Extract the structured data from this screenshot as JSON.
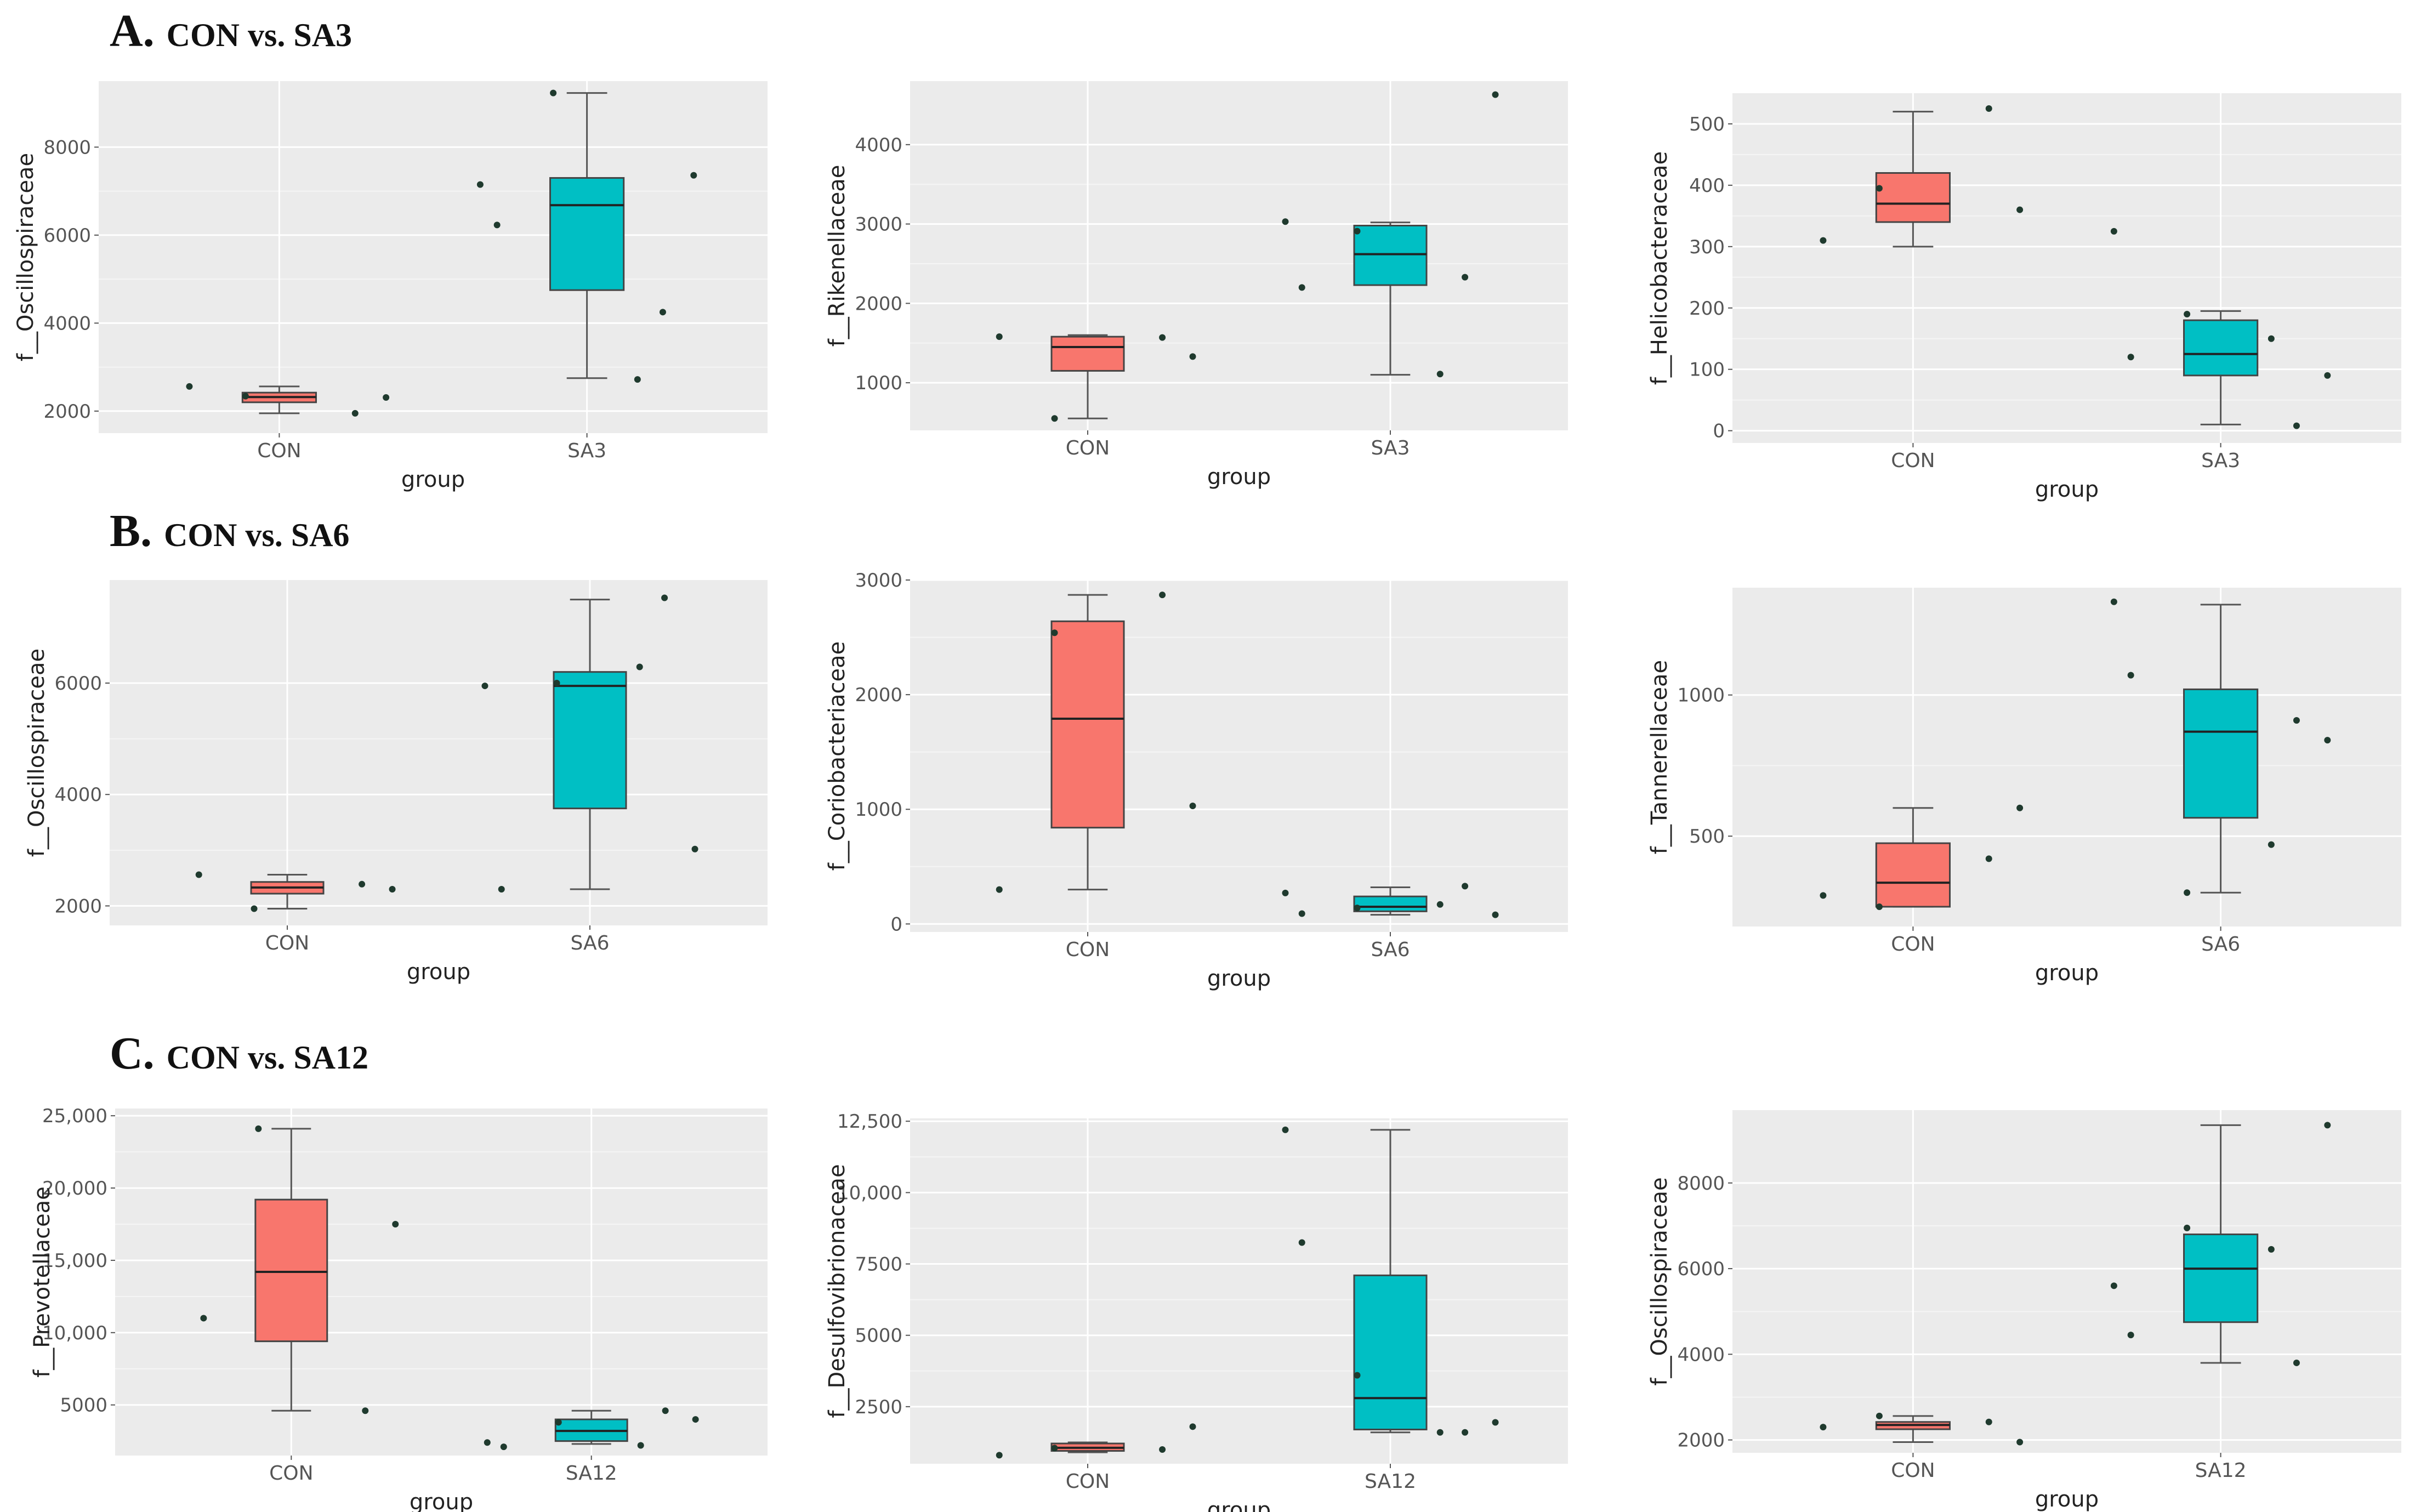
{
  "sections": [
    {
      "letter": "A.",
      "title": "CON vs. SA3"
    },
    {
      "letter": "B.",
      "title": "CON vs. SA6"
    },
    {
      "letter": "C.",
      "title": "CON vs. SA12"
    }
  ],
  "colors": {
    "CON": "#F8766D",
    "SA": "#00BFC4",
    "panel_bg": "#EBEBEB",
    "grid": "#FFFFFF",
    "point": "#1F3A2E"
  },
  "chart_data": [
    {
      "type": "box",
      "title": "",
      "ylabel": "f__Oscillospiraceae",
      "xlabel": "group",
      "categories": [
        "CON",
        "SA3"
      ],
      "ylim": [
        1500,
        9500
      ],
      "yticks": [
        2000,
        4000,
        6000,
        8000
      ],
      "tick_labels": [
        "2000",
        "4000",
        "6000",
        "8000"
      ],
      "boxes": [
        {
          "group": "CON",
          "min": 1950,
          "q1": 2200,
          "median": 2320,
          "q3": 2420,
          "max": 2560
        },
        {
          "group": "SA3",
          "min": 2750,
          "q1": 4750,
          "median": 6680,
          "q3": 7300,
          "max": 9230
        }
      ],
      "points": [
        {
          "group": "CON",
          "y": [
            2560,
            1950,
            2340,
            2310
          ]
        },
        {
          "group": "SA3",
          "y": [
            6230,
            4250,
            9230,
            7360,
            7150,
            2720
          ]
        }
      ]
    },
    {
      "type": "box",
      "title": "",
      "ylabel": "f__Rikenellaceae",
      "xlabel": "group",
      "categories": [
        "CON",
        "SA3"
      ],
      "ylim": [
        400,
        4800
      ],
      "yticks": [
        1000,
        2000,
        3000,
        4000
      ],
      "tick_labels": [
        "1000",
        "2000",
        "3000",
        "4000"
      ],
      "boxes": [
        {
          "group": "CON",
          "min": 550,
          "q1": 1150,
          "median": 1450,
          "q3": 1580,
          "max": 1600
        },
        {
          "group": "SA3",
          "min": 1100,
          "q1": 2230,
          "median": 2620,
          "q3": 2980,
          "max": 3020
        }
      ],
      "points": [
        {
          "group": "CON",
          "y": [
            1580,
            1570,
            550,
            1330
          ]
        },
        {
          "group": "SA3",
          "y": [
            2200,
            2330,
            2910,
            4630,
            3030,
            1110
          ]
        }
      ]
    },
    {
      "type": "box",
      "title": "",
      "ylabel": "f__Helicobacteraceae",
      "xlabel": "group",
      "categories": [
        "CON",
        "SA3"
      ],
      "ylim": [
        -20,
        550
      ],
      "yticks": [
        0,
        100,
        200,
        300,
        400,
        500
      ],
      "tick_labels": [
        "0",
        "100",
        "200",
        "300",
        "400",
        "500"
      ],
      "boxes": [
        {
          "group": "CON",
          "min": 300,
          "q1": 340,
          "median": 370,
          "q3": 420,
          "max": 520
        },
        {
          "group": "SA3",
          "min": 10,
          "q1": 90,
          "median": 125,
          "q3": 180,
          "max": 195
        }
      ],
      "points": [
        {
          "group": "CON",
          "y": [
            310,
            525,
            395,
            360
          ]
        },
        {
          "group": "SA3",
          "y": [
            120,
            8,
            190,
            90,
            325,
            150
          ]
        }
      ]
    },
    {
      "type": "box",
      "title": "",
      "ylabel": "f__Oscillospiraceae",
      "xlabel": "group",
      "categories": [
        "CON",
        "SA6"
      ],
      "ylim": [
        1650,
        7850
      ],
      "yticks": [
        2000,
        4000,
        6000
      ],
      "tick_labels": [
        "2000",
        "4000",
        "6000"
      ],
      "boxes": [
        {
          "group": "CON",
          "min": 1950,
          "q1": 2220,
          "median": 2330,
          "q3": 2430,
          "max": 2560
        },
        {
          "group": "SA6",
          "min": 2300,
          "q1": 3750,
          "median": 5950,
          "q3": 6200,
          "max": 7500
        }
      ],
      "points": [
        {
          "group": "CON",
          "y": [
            2560,
            2390,
            1950,
            2300
          ]
        },
        {
          "group": "SA6",
          "y": [
            2300,
            7530,
            6000,
            3020,
            5950,
            6290
          ]
        }
      ]
    },
    {
      "type": "box",
      "title": "",
      "ylabel": "f__Coriobacteriaceae",
      "xlabel": "group",
      "categories": [
        "CON",
        "SA6"
      ],
      "ylim": [
        -70,
        3000
      ],
      "yticks": [
        0,
        1000,
        2000,
        3000
      ],
      "tick_labels": [
        "0",
        "1000",
        "2000",
        "3000"
      ],
      "boxes": [
        {
          "group": "CON",
          "min": 300,
          "q1": 840,
          "median": 1790,
          "q3": 2640,
          "max": 2870
        },
        {
          "group": "SA6",
          "min": 80,
          "q1": 110,
          "median": 150,
          "q3": 240,
          "max": 320
        }
      ],
      "points": [
        {
          "group": "CON",
          "y": [
            300,
            2870,
            2540,
            1030
          ]
        },
        {
          "group": "SA6",
          "y": [
            90,
            330,
            140,
            80,
            270,
            170
          ]
        }
      ]
    },
    {
      "type": "box",
      "title": "",
      "ylabel": "f__Tannerellaceae",
      "xlabel": "group",
      "categories": [
        "CON",
        "SA6"
      ],
      "ylim": [
        180,
        1380
      ],
      "yticks": [
        500,
        1000
      ],
      "tick_labels": [
        "500",
        "1000"
      ],
      "boxes": [
        {
          "group": "CON",
          "min": 250,
          "q1": 250,
          "median": 335,
          "q3": 475,
          "max": 600
        },
        {
          "group": "SA6",
          "min": 300,
          "q1": 565,
          "median": 870,
          "q3": 1020,
          "max": 1320
        }
      ],
      "points": [
        {
          "group": "CON",
          "y": [
            290,
            420,
            250,
            600
          ]
        },
        {
          "group": "SA6",
          "y": [
            1070,
            910,
            300,
            840,
            1330,
            470
          ]
        }
      ]
    },
    {
      "type": "box",
      "title": "",
      "ylabel": "f__Prevotellaceae",
      "xlabel": "group",
      "categories": [
        "CON",
        "SA12"
      ],
      "ylim": [
        1500,
        25500
      ],
      "yticks": [
        5000,
        10000,
        15000,
        20000,
        25000
      ],
      "tick_labels": [
        "5000",
        "10,000",
        "15,000",
        "20,000",
        "25,000"
      ],
      "boxes": [
        {
          "group": "CON",
          "min": 4600,
          "q1": 9400,
          "median": 14200,
          "q3": 19200,
          "max": 24100
        },
        {
          "group": "SA12",
          "min": 2300,
          "q1": 2500,
          "median": 3200,
          "q3": 4000,
          "max": 4600
        }
      ],
      "points": [
        {
          "group": "CON",
          "y": [
            11000,
            4600,
            24100,
            17500
          ]
        },
        {
          "group": "SA12",
          "y": [
            2100,
            4600,
            3800,
            4000,
            2400,
            2200
          ]
        }
      ]
    },
    {
      "type": "box",
      "title": "",
      "ylabel": "f__Desulfovibrionaceae",
      "xlabel": "group",
      "categories": [
        "CON",
        "SA12"
      ],
      "ylim": [
        500,
        12600
      ],
      "yticks": [
        2500,
        5000,
        7500,
        10000,
        12500
      ],
      "tick_labels": [
        "2500",
        "5000",
        "7500",
        "10,000",
        "12,500"
      ],
      "boxes": [
        {
          "group": "CON",
          "min": 900,
          "q1": 950,
          "median": 1060,
          "q3": 1210,
          "max": 1250
        },
        {
          "group": "SA12",
          "min": 1600,
          "q1": 1700,
          "median": 2800,
          "q3": 7100,
          "max": 12200
        }
      ],
      "points": [
        {
          "group": "CON",
          "y": [
            800,
            1000,
            1050,
            1800
          ]
        },
        {
          "group": "SA12",
          "y": [
            8250,
            1600,
            3600,
            1950,
            12200,
            1600
          ]
        }
      ]
    },
    {
      "type": "box",
      "title": "",
      "ylabel": "f__Oscillospiraceae",
      "xlabel": "group",
      "categories": [
        "CON",
        "SA12"
      ],
      "ylim": [
        1700,
        9700
      ],
      "yticks": [
        2000,
        4000,
        6000,
        8000
      ],
      "tick_labels": [
        "2000",
        "4000",
        "6000",
        "8000"
      ],
      "boxes": [
        {
          "group": "CON",
          "min": 1950,
          "q1": 2250,
          "median": 2350,
          "q3": 2420,
          "max": 2560
        },
        {
          "group": "SA12",
          "min": 3800,
          "q1": 4750,
          "median": 6000,
          "q3": 6800,
          "max": 9350
        }
      ],
      "points": [
        {
          "group": "CON",
          "y": [
            2300,
            2420,
            2560,
            1950
          ]
        },
        {
          "group": "SA12",
          "y": [
            4450,
            3800,
            6950,
            9350,
            5600,
            6450
          ]
        }
      ]
    }
  ]
}
